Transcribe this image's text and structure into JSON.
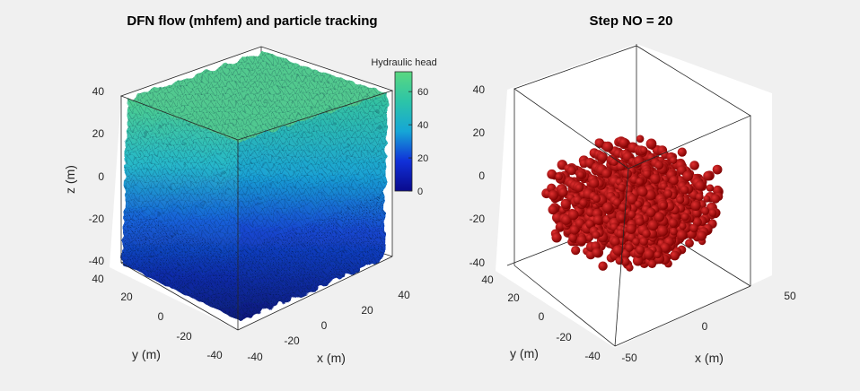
{
  "figure": {
    "background": "#f0f0f0",
    "panel_fill": "#ffffff"
  },
  "chart_data": [
    {
      "type": "scatter",
      "subtype": "3d-mesh-surface",
      "title": "DFN flow (mhfem) and particle tracking",
      "xlabel": "x (m)",
      "ylabel": "y (m)",
      "zlabel": "z (m)",
      "xlim": [
        -40,
        40
      ],
      "ylim": [
        -40,
        40
      ],
      "zlim": [
        -40,
        40
      ],
      "xticks": [
        "-40",
        "-20",
        "0",
        "20",
        "40"
      ],
      "yticks": [
        "-40",
        "-20",
        "0",
        "20",
        "40"
      ],
      "zticks": [
        "-40",
        "-20",
        "0",
        "20",
        "40"
      ],
      "grid": false,
      "colorbar": {
        "label": "Hydraulic head",
        "colormap": "parula-like (blue to green)",
        "range": [
          0,
          72
        ],
        "ticks": [
          "0",
          "20",
          "40",
          "60"
        ]
      },
      "description_values": {
        "head_at_top_z40": 72,
        "head_at_bottom_z-40": 0
      }
    },
    {
      "type": "scatter",
      "subtype": "3d-particles",
      "title": "Step NO = 20",
      "xlabel": "x (m)",
      "ylabel": "y (m)",
      "zlabel": "",
      "xlim": [
        -50,
        50
      ],
      "ylim": [
        -40,
        40
      ],
      "zlim": [
        -40,
        40
      ],
      "xticks": [
        "-50",
        "0",
        "50"
      ],
      "yticks": [
        "-40",
        "-20",
        "0",
        "20",
        "40"
      ],
      "zticks": [
        "-40",
        "-20",
        "0",
        "20",
        "40"
      ],
      "grid": false,
      "particle_color": "#b20000",
      "particle_extent": {
        "x": [
          -40,
          40
        ],
        "y": [
          -35,
          35
        ],
        "z": [
          -32,
          20
        ]
      }
    }
  ]
}
